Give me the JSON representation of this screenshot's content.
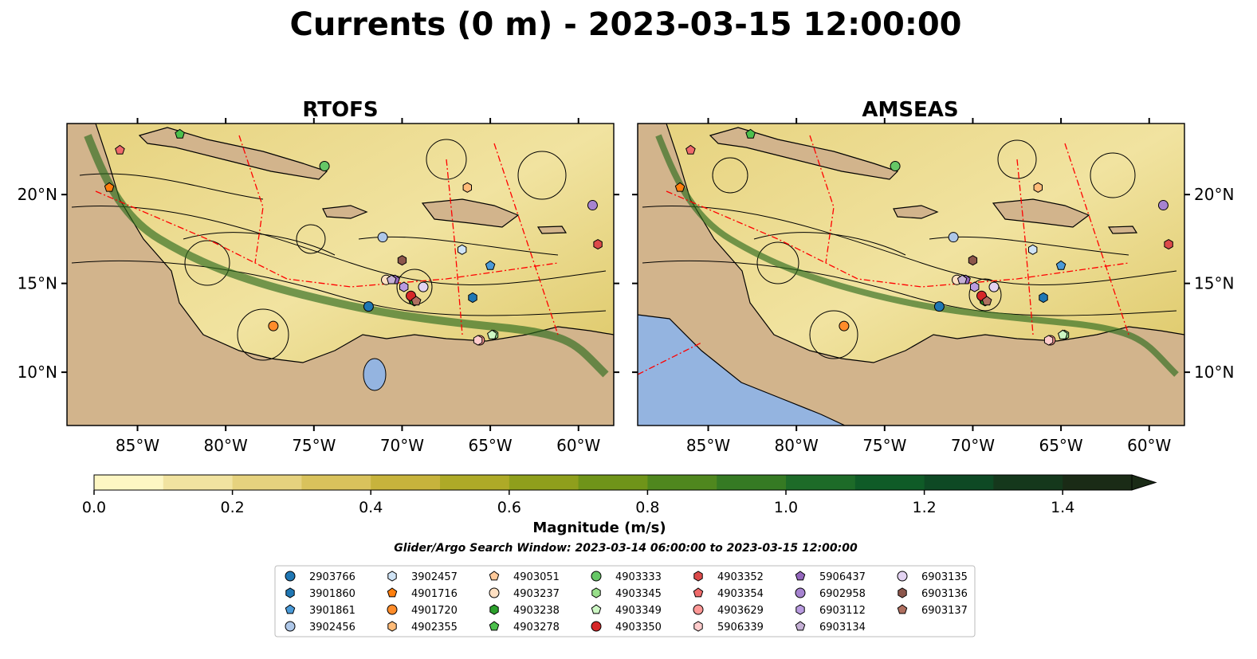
{
  "title": "Currents (0 m) - 2023-03-15 12:00:00",
  "chart_data": [
    {
      "type": "heatmap",
      "title": "RTOFS",
      "field": "surface current magnitude with streamlines",
      "xlim": [
        -89,
        -58
      ],
      "ylim": [
        7,
        24
      ],
      "xticks": [
        "85°W",
        "80°W",
        "75°W",
        "70°W",
        "65°W",
        "60°W"
      ],
      "yticks": [
        "20°N",
        "15°N",
        "10°N"
      ],
      "ytick_side": "left",
      "points": [
        {
          "id": "2903766",
          "lon": -71.9,
          "lat": 13.7
        },
        {
          "id": "3901860",
          "lon": -66.0,
          "lat": 14.2
        },
        {
          "id": "3901861",
          "lon": -65.0,
          "lat": 16.0
        },
        {
          "id": "3902456",
          "lon": -71.1,
          "lat": 17.6
        },
        {
          "id": "3902457",
          "lon": -66.6,
          "lat": 16.9
        },
        {
          "id": "4901716",
          "lon": -86.6,
          "lat": 20.4
        },
        {
          "id": "4901720",
          "lon": -77.3,
          "lat": 12.6
        },
        {
          "id": "4902355",
          "lon": -66.3,
          "lat": 20.4
        },
        {
          "id": "4903051",
          "lon": -69.4,
          "lat": 14.1
        },
        {
          "id": "4903237",
          "lon": -70.9,
          "lat": 15.2
        },
        {
          "id": "4903238",
          "lon": -69.3,
          "lat": 14.0
        },
        {
          "id": "4903278",
          "lon": -82.6,
          "lat": 23.4
        },
        {
          "id": "4903333",
          "lon": -74.4,
          "lat": 21.6
        },
        {
          "id": "4903345",
          "lon": -64.8,
          "lat": 12.1
        },
        {
          "id": "4903349",
          "lon": -64.9,
          "lat": 12.1
        },
        {
          "id": "4903350",
          "lon": -69.5,
          "lat": 14.3
        },
        {
          "id": "4903352",
          "lon": -58.9,
          "lat": 17.2
        },
        {
          "id": "4903354",
          "lon": -86.0,
          "lat": 22.5
        },
        {
          "id": "4903629",
          "lon": -65.6,
          "lat": 11.8
        },
        {
          "id": "5906339",
          "lon": -65.7,
          "lat": 11.8
        },
        {
          "id": "5906437",
          "lon": -70.4,
          "lat": 15.2
        },
        {
          "id": "6902958",
          "lon": -59.2,
          "lat": 19.4
        },
        {
          "id": "6903112",
          "lon": -69.9,
          "lat": 14.8
        },
        {
          "id": "6903134",
          "lon": -70.6,
          "lat": 15.2
        },
        {
          "id": "6903135",
          "lon": -68.8,
          "lat": 14.8
        },
        {
          "id": "6903136",
          "lon": -70.0,
          "lat": 16.3
        },
        {
          "id": "6903137",
          "lon": -69.2,
          "lat": 14.0
        }
      ]
    },
    {
      "type": "heatmap",
      "title": "AMSEAS",
      "field": "surface current magnitude with streamlines",
      "xlim": [
        -89,
        -58
      ],
      "ylim": [
        7,
        24
      ],
      "xticks": [
        "85°W",
        "80°W",
        "75°W",
        "70°W",
        "65°W",
        "60°W"
      ],
      "yticks": [
        "20°N",
        "15°N",
        "10°N"
      ],
      "ytick_side": "right",
      "points": [
        {
          "id": "2903766",
          "lon": -71.9,
          "lat": 13.7
        },
        {
          "id": "3901860",
          "lon": -66.0,
          "lat": 14.2
        },
        {
          "id": "3901861",
          "lon": -65.0,
          "lat": 16.0
        },
        {
          "id": "3902456",
          "lon": -71.1,
          "lat": 17.6
        },
        {
          "id": "3902457",
          "lon": -66.6,
          "lat": 16.9
        },
        {
          "id": "4901716",
          "lon": -86.6,
          "lat": 20.4
        },
        {
          "id": "4901720",
          "lon": -77.3,
          "lat": 12.6
        },
        {
          "id": "4902355",
          "lon": -66.3,
          "lat": 20.4
        },
        {
          "id": "4903051",
          "lon": -69.4,
          "lat": 14.1
        },
        {
          "id": "4903237",
          "lon": -70.9,
          "lat": 15.2
        },
        {
          "id": "4903238",
          "lon": -69.3,
          "lat": 14.0
        },
        {
          "id": "4903278",
          "lon": -82.6,
          "lat": 23.4
        },
        {
          "id": "4903333",
          "lon": -74.4,
          "lat": 21.6
        },
        {
          "id": "4903345",
          "lon": -64.8,
          "lat": 12.1
        },
        {
          "id": "4903349",
          "lon": -64.9,
          "lat": 12.1
        },
        {
          "id": "4903350",
          "lon": -69.5,
          "lat": 14.3
        },
        {
          "id": "4903352",
          "lon": -58.9,
          "lat": 17.2
        },
        {
          "id": "4903354",
          "lon": -86.0,
          "lat": 22.5
        },
        {
          "id": "4903629",
          "lon": -65.6,
          "lat": 11.8
        },
        {
          "id": "5906339",
          "lon": -65.7,
          "lat": 11.8
        },
        {
          "id": "5906437",
          "lon": -70.4,
          "lat": 15.2
        },
        {
          "id": "6902958",
          "lon": -59.2,
          "lat": 19.4
        },
        {
          "id": "6903112",
          "lon": -69.9,
          "lat": 14.8
        },
        {
          "id": "6903134",
          "lon": -70.6,
          "lat": 15.2
        },
        {
          "id": "6903135",
          "lon": -68.8,
          "lat": 14.8
        },
        {
          "id": "6903136",
          "lon": -70.0,
          "lat": 16.3
        },
        {
          "id": "6903137",
          "lon": -69.2,
          "lat": 14.0
        }
      ]
    }
  ],
  "colorbar": {
    "label": "Magnitude (m/s)",
    "min": 0.0,
    "max": 1.5,
    "step": 0.1,
    "extend": "max",
    "tick_values": [
      0.0,
      0.2,
      0.4,
      0.6,
      0.8,
      1.0,
      1.2,
      1.4
    ],
    "ticks": [
      "0.0",
      "0.2",
      "0.4",
      "0.6",
      "0.8",
      "1.0",
      "1.2",
      "1.4"
    ],
    "colors": [
      "#fdf6c3",
      "#f1e3a0",
      "#e6d27e",
      "#d9c25c",
      "#c7b33c",
      "#aeaa27",
      "#8f9f1c",
      "#6f9419",
      "#4f871e",
      "#357a23",
      "#1d6b28",
      "#0f5b27",
      "#0e4924",
      "#15381c",
      "#1a2b16"
    ]
  },
  "search_window": "Glider/Argo Search Window: 2023-03-14 06:00:00 to 2023-03-15 12:00:00",
  "legend": [
    {
      "id": "2903766",
      "marker": "circle",
      "color": "#1f77b4"
    },
    {
      "id": "3901860",
      "marker": "hexagon",
      "color": "#1f77b4"
    },
    {
      "id": "3901861",
      "marker": "pentagon",
      "color": "#4a9ad8"
    },
    {
      "id": "3902456",
      "marker": "circle",
      "color": "#aec7e8"
    },
    {
      "id": "3902457",
      "marker": "hexagon",
      "color": "#cfe3f5"
    },
    {
      "id": "4901716",
      "marker": "pentagon",
      "color": "#ff7f0e"
    },
    {
      "id": "4901720",
      "marker": "circle",
      "color": "#ff8c2a"
    },
    {
      "id": "4902355",
      "marker": "hexagon",
      "color": "#ffbb78"
    },
    {
      "id": "4903051",
      "marker": "pentagon",
      "color": "#ffc99a"
    },
    {
      "id": "4903237",
      "marker": "circle",
      "color": "#ffe0c2"
    },
    {
      "id": "4903238",
      "marker": "hexagon",
      "color": "#2ca02c"
    },
    {
      "id": "4903278",
      "marker": "pentagon",
      "color": "#4cc04c"
    },
    {
      "id": "4903333",
      "marker": "circle",
      "color": "#66c766"
    },
    {
      "id": "4903345",
      "marker": "hexagon",
      "color": "#98df8a"
    },
    {
      "id": "4903349",
      "marker": "pentagon",
      "color": "#cdf7c4"
    },
    {
      "id": "4903350",
      "marker": "circle",
      "color": "#d62728"
    },
    {
      "id": "4903352",
      "marker": "hexagon",
      "color": "#dc4a4a"
    },
    {
      "id": "4903354",
      "marker": "pentagon",
      "color": "#ef6a6a"
    },
    {
      "id": "4903629",
      "marker": "circle",
      "color": "#ff9896"
    },
    {
      "id": "5906339",
      "marker": "hexagon",
      "color": "#ffcccc"
    },
    {
      "id": "5906437",
      "marker": "pentagon",
      "color": "#9467bd"
    },
    {
      "id": "6902958",
      "marker": "circle",
      "color": "#a683d0"
    },
    {
      "id": "6903112",
      "marker": "hexagon",
      "color": "#b99be0"
    },
    {
      "id": "6903134",
      "marker": "pentagon",
      "color": "#c5b0d5"
    },
    {
      "id": "6903135",
      "marker": "circle",
      "color": "#e3d3f2"
    },
    {
      "id": "6903136",
      "marker": "hexagon",
      "color": "#8c564b"
    },
    {
      "id": "6903137",
      "marker": "pentagon",
      "color": "#b07060"
    }
  ],
  "colors": {
    "land": "#d2b48c",
    "lake": "#94b4e0",
    "river": "#9bb5d6",
    "eez": "#ff0000",
    "streamline": "#000000"
  }
}
